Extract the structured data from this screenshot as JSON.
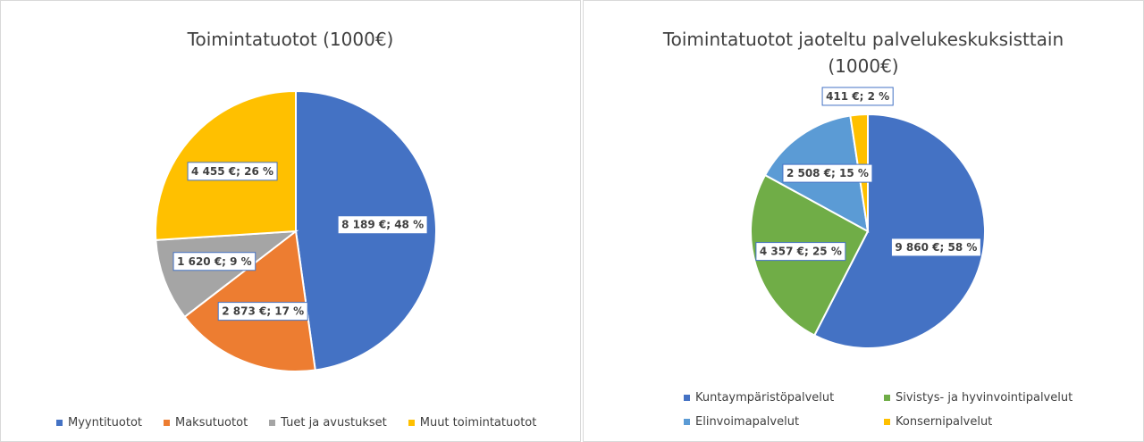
{
  "chart_data": [
    {
      "type": "pie",
      "title": "Toimintatuotot (1000€)",
      "categories": [
        "Myyntituotot",
        "Maksutuotot",
        "Tuet ja avustukset",
        "Muut toimintatuotot"
      ],
      "values": [
        8189,
        2873,
        1620,
        4455
      ],
      "value_labels": [
        "8 189 €; 48 %",
        "2 873 €; 17 %",
        "1 620 €; 9 %",
        "4 455 €; 26 %"
      ],
      "colors": [
        "#4472c4",
        "#ed7d31",
        "#a5a5a5",
        "#ffc000"
      ],
      "legend": "bottom"
    },
    {
      "type": "pie",
      "title": "Toimintatuotot jaoteltu palvelukeskuksisttain (1000€)",
      "categories": [
        "Kuntaympäristöpalvelut",
        "Sivistys- ja hyvinvointipalvelut",
        "Elinvoimapalvelut",
        "Konsernipalvelut"
      ],
      "values": [
        9860,
        4357,
        2508,
        411
      ],
      "value_labels": [
        "9 860 €; 58 %",
        "4 357 €; 25 %",
        "2 508 €; 15 %",
        "411 €; 2 %"
      ],
      "colors": [
        "#4472c4",
        "#70ad47",
        "#5b9bd5",
        "#ffc000"
      ],
      "legend": "bottom"
    }
  ]
}
